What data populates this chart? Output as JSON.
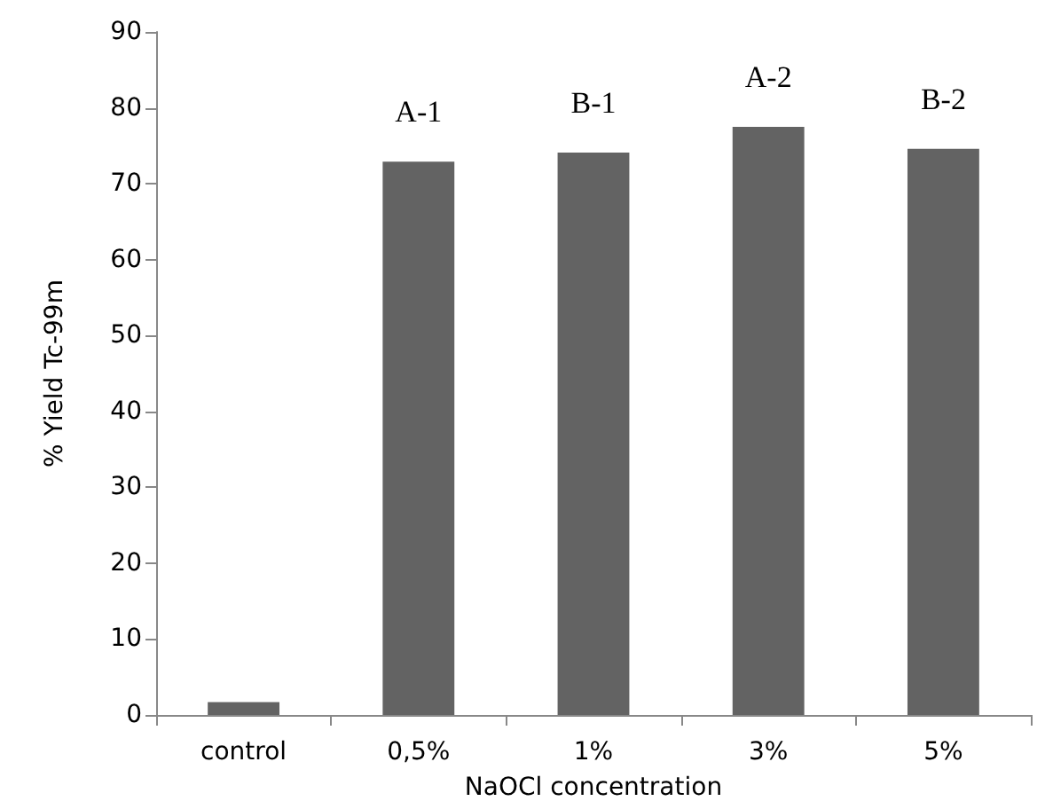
{
  "chart_data": {
    "type": "bar",
    "xlabel": "NaOCl concentration",
    "ylabel": "% Yield Tc-99m",
    "categories": [
      "control",
      "0,5%",
      "1%",
      "3%",
      "5%"
    ],
    "values": [
      1.7,
      72.9,
      74.1,
      77.5,
      74.6
    ],
    "color": "#636363",
    "ylim": [
      0,
      90
    ],
    "yticks": [
      0,
      10,
      20,
      30,
      40,
      50,
      60,
      70,
      80,
      90
    ],
    "grid": false,
    "annotations": [
      {
        "text": "A-1",
        "x": "0,5%",
        "y": 72.9
      },
      {
        "text": "B-1",
        "x": "1%",
        "y": 74.1
      },
      {
        "text": "A-2",
        "x": "3%",
        "y": 77.5
      },
      {
        "text": "B-2",
        "x": "5%",
        "y": 74.6
      }
    ]
  }
}
